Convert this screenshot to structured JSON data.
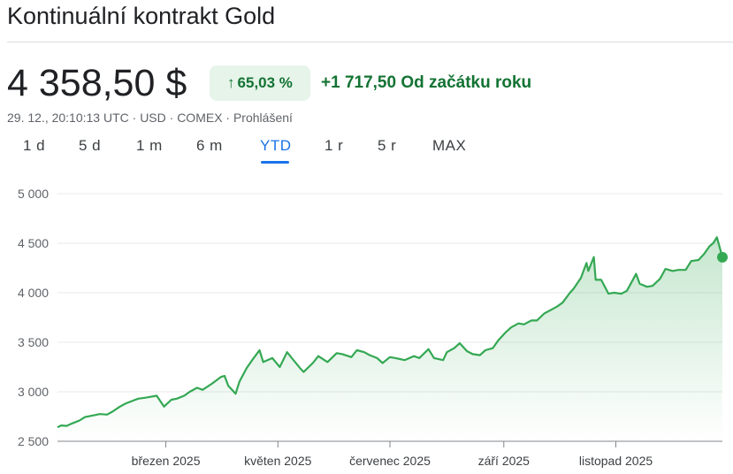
{
  "header": {
    "title": "Kontinuální kontrakt Gold",
    "price": "4 358,50 $",
    "pct_change": "65,03 %",
    "abs_change": "+1 717,50 Od začátku roku",
    "meta": "29. 12., 20:10:13 UTC · USD · COMEX · Prohlášení"
  },
  "tabs": [
    {
      "label": "1 d",
      "active": false
    },
    {
      "label": "5 d",
      "active": false
    },
    {
      "label": "1 m",
      "active": false
    },
    {
      "label": "6 m",
      "active": false
    },
    {
      "label": "YTD",
      "active": true
    },
    {
      "label": "1 r",
      "active": false
    },
    {
      "label": "5 r",
      "active": false
    },
    {
      "label": "MAX",
      "active": false
    }
  ],
  "colors": {
    "line": "#34a853",
    "positive_text": "#137333",
    "positive_bg": "#e6f4ea",
    "active_tab": "#1a73e8"
  },
  "chart_data": {
    "type": "area",
    "x_start": "2025-01-01",
    "x_end": "2025-12-29",
    "ylim": [
      2500,
      5000
    ],
    "yticks": [
      2500,
      3000,
      3500,
      4000,
      4500,
      5000
    ],
    "ytick_labels": [
      "2 500",
      "3 000",
      "3 500",
      "4 000",
      "4 500",
      "5 000"
    ],
    "xtick_labels": [
      "březen 2025",
      "květen 2025",
      "červenec 2025",
      "září 2025",
      "listopad 2025"
    ],
    "xtick_dates": [
      "2025-03-01",
      "2025-05-01",
      "2025-07-01",
      "2025-09-01",
      "2025-11-01"
    ],
    "grid": true,
    "series": [
      {
        "values": [
          [
            "2025-01-01",
            2641
          ],
          [
            "2025-01-03",
            2660
          ],
          [
            "2025-01-06",
            2655
          ],
          [
            "2025-01-09",
            2680
          ],
          [
            "2025-01-13",
            2710
          ],
          [
            "2025-01-16",
            2745
          ],
          [
            "2025-01-20",
            2760
          ],
          [
            "2025-01-24",
            2775
          ],
          [
            "2025-01-28",
            2770
          ],
          [
            "2025-01-31",
            2800
          ],
          [
            "2025-02-04",
            2850
          ],
          [
            "2025-02-07",
            2880
          ],
          [
            "2025-02-11",
            2910
          ],
          [
            "2025-02-14",
            2930
          ],
          [
            "2025-02-18",
            2940
          ],
          [
            "2025-02-21",
            2950
          ],
          [
            "2025-02-24",
            2960
          ],
          [
            "2025-02-28",
            2850
          ],
          [
            "2025-03-04",
            2920
          ],
          [
            "2025-03-07",
            2930
          ],
          [
            "2025-03-11",
            2960
          ],
          [
            "2025-03-14",
            3000
          ],
          [
            "2025-03-18",
            3040
          ],
          [
            "2025-03-21",
            3020
          ],
          [
            "2025-03-26",
            3080
          ],
          [
            "2025-03-31",
            3150
          ],
          [
            "2025-04-02",
            3160
          ],
          [
            "2025-04-04",
            3060
          ],
          [
            "2025-04-08",
            2980
          ],
          [
            "2025-04-10",
            3100
          ],
          [
            "2025-04-14",
            3240
          ],
          [
            "2025-04-17",
            3320
          ],
          [
            "2025-04-21",
            3420
          ],
          [
            "2025-04-23",
            3300
          ],
          [
            "2025-04-28",
            3340
          ],
          [
            "2025-05-02",
            3250
          ],
          [
            "2025-05-06",
            3400
          ],
          [
            "2025-05-09",
            3330
          ],
          [
            "2025-05-13",
            3240
          ],
          [
            "2025-05-15",
            3200
          ],
          [
            "2025-05-20",
            3290
          ],
          [
            "2025-05-23",
            3360
          ],
          [
            "2025-05-28",
            3300
          ],
          [
            "2025-06-02",
            3390
          ],
          [
            "2025-06-05",
            3380
          ],
          [
            "2025-06-10",
            3350
          ],
          [
            "2025-06-13",
            3420
          ],
          [
            "2025-06-17",
            3400
          ],
          [
            "2025-06-20",
            3370
          ],
          [
            "2025-06-24",
            3340
          ],
          [
            "2025-06-27",
            3290
          ],
          [
            "2025-07-01",
            3350
          ],
          [
            "2025-07-04",
            3340
          ],
          [
            "2025-07-09",
            3320
          ],
          [
            "2025-07-14",
            3360
          ],
          [
            "2025-07-17",
            3340
          ],
          [
            "2025-07-22",
            3430
          ],
          [
            "2025-07-25",
            3340
          ],
          [
            "2025-07-30",
            3320
          ],
          [
            "2025-08-01",
            3400
          ],
          [
            "2025-08-05",
            3440
          ],
          [
            "2025-08-08",
            3490
          ],
          [
            "2025-08-12",
            3410
          ],
          [
            "2025-08-15",
            3380
          ],
          [
            "2025-08-19",
            3370
          ],
          [
            "2025-08-22",
            3420
          ],
          [
            "2025-08-26",
            3440
          ],
          [
            "2025-08-29",
            3520
          ],
          [
            "2025-09-02",
            3600
          ],
          [
            "2025-09-05",
            3650
          ],
          [
            "2025-09-09",
            3690
          ],
          [
            "2025-09-12",
            3680
          ],
          [
            "2025-09-16",
            3720
          ],
          [
            "2025-09-19",
            3720
          ],
          [
            "2025-09-23",
            3790
          ],
          [
            "2025-09-26",
            3820
          ],
          [
            "2025-09-30",
            3860
          ],
          [
            "2025-10-03",
            3900
          ],
          [
            "2025-10-07",
            4000
          ],
          [
            "2025-10-09",
            4040
          ],
          [
            "2025-10-13",
            4150
          ],
          [
            "2025-10-16",
            4300
          ],
          [
            "2025-10-17",
            4220
          ],
          [
            "2025-10-20",
            4360
          ],
          [
            "2025-10-21",
            4130
          ],
          [
            "2025-10-24",
            4130
          ],
          [
            "2025-10-28",
            3990
          ],
          [
            "2025-10-31",
            4000
          ],
          [
            "2025-11-04",
            3990
          ],
          [
            "2025-11-07",
            4020
          ],
          [
            "2025-11-12",
            4190
          ],
          [
            "2025-11-14",
            4090
          ],
          [
            "2025-11-18",
            4060
          ],
          [
            "2025-11-21",
            4070
          ],
          [
            "2025-11-25",
            4140
          ],
          [
            "2025-11-28",
            4240
          ],
          [
            "2025-12-02",
            4220
          ],
          [
            "2025-12-05",
            4230
          ],
          [
            "2025-12-09",
            4230
          ],
          [
            "2025-12-12",
            4320
          ],
          [
            "2025-12-16",
            4330
          ],
          [
            "2025-12-19",
            4390
          ],
          [
            "2025-12-22",
            4470
          ],
          [
            "2025-12-24",
            4500
          ],
          [
            "2025-12-26",
            4560
          ],
          [
            "2025-12-29",
            4358.5
          ]
        ]
      }
    ]
  }
}
